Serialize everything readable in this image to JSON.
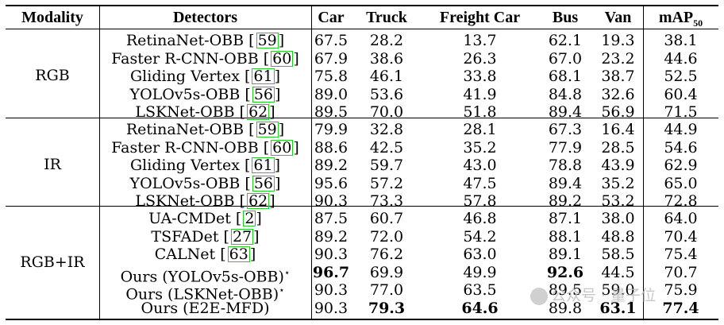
{
  "headers": {
    "modality": "Modality",
    "detectors": "Detectors",
    "car": "Car",
    "truck": "Truck",
    "freight_car": "Freight Car",
    "bus": "Bus",
    "van": "Van",
    "map_base": "mAP",
    "map_sub": "50"
  },
  "groups": [
    {
      "modality": "RGB",
      "rows": [
        {
          "detector": "RetinaNet-OBB",
          "ref": "59",
          "star": "",
          "car": "67.5",
          "truck": "28.2",
          "freight": "13.7",
          "bus": "62.1",
          "van": "19.3",
          "map": "38.1",
          "bold": []
        },
        {
          "detector": "Faster R-CNN-OBB",
          "ref": "60",
          "star": "",
          "car": "67.9",
          "truck": "38.6",
          "freight": "26.3",
          "bus": "67.0",
          "van": "23.2",
          "map": "44.6",
          "bold": []
        },
        {
          "detector": "Gliding Vertex",
          "ref": "61",
          "star": "",
          "car": "75.8",
          "truck": "46.1",
          "freight": "33.8",
          "bus": "68.1",
          "van": "38.7",
          "map": "52.5",
          "bold": []
        },
        {
          "detector": "YOLOv5s-OBB",
          "ref": "56",
          "star": "",
          "car": "89.0",
          "truck": "53.6",
          "freight": "41.9",
          "bus": "84.8",
          "van": "32.6",
          "map": "60.4",
          "bold": []
        },
        {
          "detector": "LSKNet-OBB",
          "ref": "62",
          "star": "",
          "car": "89.5",
          "truck": "70.0",
          "freight": "51.8",
          "bus": "89.4",
          "van": "56.9",
          "map": "71.5",
          "bold": []
        }
      ]
    },
    {
      "modality": "IR",
      "rows": [
        {
          "detector": "RetinaNet-OBB",
          "ref": "59",
          "star": "",
          "car": "79.9",
          "truck": "32.8",
          "freight": "28.1",
          "bus": "67.3",
          "van": "16.4",
          "map": "44.9",
          "bold": []
        },
        {
          "detector": "Faster R-CNN-OBB",
          "ref": "60",
          "star": "",
          "car": "88.6",
          "truck": "42.5",
          "freight": "35.2",
          "bus": "77.9",
          "van": "28.5",
          "map": "54.6",
          "bold": []
        },
        {
          "detector": "Gliding Vertex",
          "ref": "61",
          "star": "",
          "car": "89.2",
          "truck": "59.7",
          "freight": "43.0",
          "bus": "78.8",
          "van": "43.9",
          "map": "62.9",
          "bold": []
        },
        {
          "detector": "YOLOv5s-OBB",
          "ref": "56",
          "star": "",
          "car": "95.6",
          "truck": "57.2",
          "freight": "47.5",
          "bus": "89.4",
          "van": "35.2",
          "map": "65.0",
          "bold": []
        },
        {
          "detector": "LSKNet-OBB",
          "ref": "62",
          "star": "",
          "car": "90.3",
          "truck": "73.3",
          "freight": "57.8",
          "bus": "89.2",
          "van": "53.2",
          "map": "72.8",
          "bold": []
        }
      ]
    },
    {
      "modality": "RGB+IR",
      "rows": [
        {
          "detector": "UA-CMDet",
          "ref": "2",
          "star": "",
          "car": "87.5",
          "truck": "60.7",
          "freight": "46.8",
          "bus": "87.1",
          "van": "38.0",
          "map": "64.0",
          "bold": []
        },
        {
          "detector": "TSFADet",
          "ref": "27",
          "star": "",
          "car": "89.2",
          "truck": "72.0",
          "freight": "54.2",
          "bus": "88.1",
          "van": "48.8",
          "map": "70.4",
          "bold": []
        },
        {
          "detector": "CALNet",
          "ref": "63",
          "star": "",
          "car": "90.3",
          "truck": "76.2",
          "freight": "63.0",
          "bus": "89.1",
          "van": "58.5",
          "map": "75.4",
          "bold": []
        },
        {
          "detector": "Ours (YOLOv5s-OBB)",
          "ref": "",
          "star": "⋆",
          "car": "96.7",
          "truck": "69.9",
          "freight": "49.9",
          "bus": "92.6",
          "van": "44.5",
          "map": "70.7",
          "bold": [
            "car",
            "bus"
          ]
        },
        {
          "detector": "Ours (LSKNet-OBB)",
          "ref": "",
          "star": "⋆",
          "car": "90.3",
          "truck": "77.0",
          "freight": "63.5",
          "bus": "89.5",
          "van": "59.0",
          "map": "75.9",
          "bold": []
        },
        {
          "detector": "Ours (E2E-MFD)",
          "ref": "",
          "star": "",
          "car": "90.3",
          "truck": "79.3",
          "freight": "64.6",
          "bus": "89.8",
          "van": "63.1",
          "map": "77.4",
          "bold": [
            "truck",
            "freight",
            "van",
            "map"
          ]
        }
      ]
    }
  ],
  "watermark": "公众号 · 量子位"
}
